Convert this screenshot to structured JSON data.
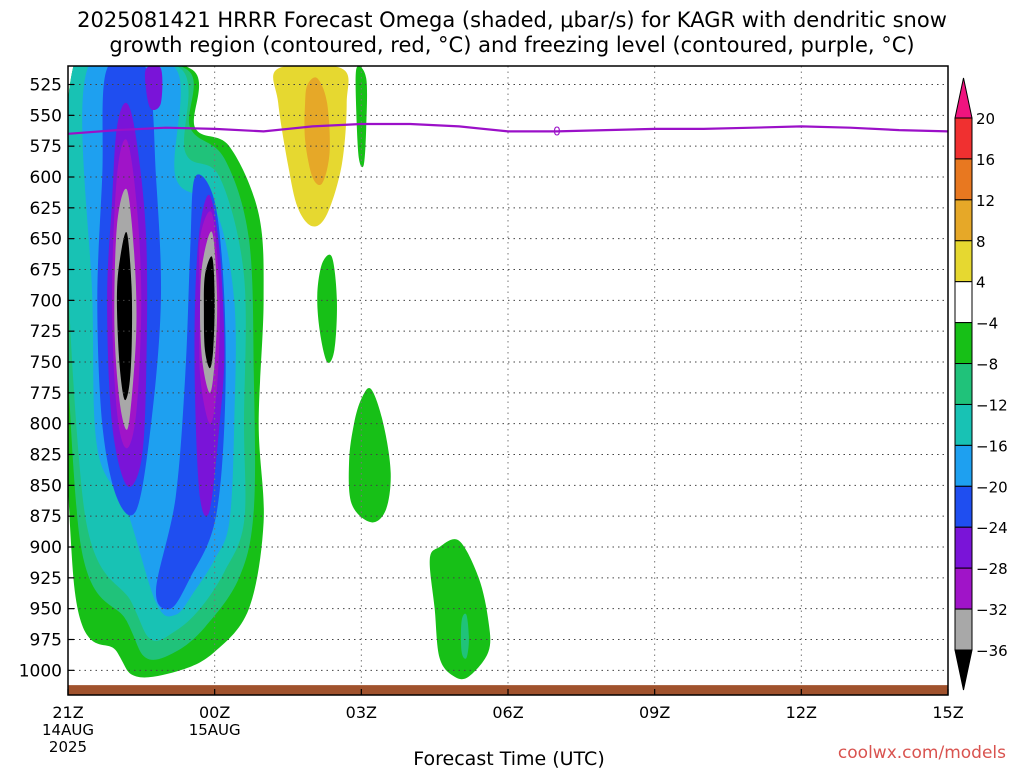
{
  "title_line1": "2025081421 HRRR Forecast Omega (shaded, μbar/s) for KAGR with dendritic snow",
  "title_line2": "growth region (contoured, red, °C) and freezing level (contoured, purple, °C)",
  "credit": "coolwx.com/models",
  "chart_data": {
    "type": "heatmap",
    "xlabel": "Forecast Time (UTC)",
    "ylabel": "",
    "x_ticks": [
      {
        "hour": 0,
        "label": "21Z",
        "sub1": "14AUG",
        "sub2": "2025"
      },
      {
        "hour": 3,
        "label": "00Z",
        "sub1": "15AUG",
        "sub2": ""
      },
      {
        "hour": 6,
        "label": "03Z",
        "sub1": "",
        "sub2": ""
      },
      {
        "hour": 9,
        "label": "06Z",
        "sub1": "",
        "sub2": ""
      },
      {
        "hour": 12,
        "label": "09Z",
        "sub1": "",
        "sub2": ""
      },
      {
        "hour": 15,
        "label": "12Z",
        "sub1": "",
        "sub2": ""
      },
      {
        "hour": 18,
        "label": "15Z",
        "sub1": "",
        "sub2": ""
      }
    ],
    "xlim_hours": [
      0,
      18
    ],
    "y_ticks": [
      525,
      550,
      575,
      600,
      625,
      650,
      675,
      700,
      725,
      750,
      775,
      800,
      825,
      850,
      875,
      900,
      925,
      950,
      975,
      1000
    ],
    "ylim_hpa": [
      510,
      1020
    ],
    "grid": true,
    "colorbar": {
      "position": "right",
      "labels": [
        "20",
        "16",
        "12",
        "8",
        "4",
        "−4",
        "−8",
        "−12",
        "−16",
        "−20",
        "−24",
        "−28",
        "−32",
        "−36"
      ],
      "colors": [
        "#f0147f",
        "#f03030",
        "#e87820",
        "#e6a828",
        "#e6d830",
        "#ffffff",
        "#17c017",
        "#20c27a",
        "#18c2b4",
        "#1ea0f0",
        "#1f4ef0",
        "#7a14d8",
        "#a014c8",
        "#a8a8a8",
        "#000000"
      ]
    },
    "freezing_level_hpa": [
      {
        "hour": 0.0,
        "p": 565
      },
      {
        "hour": 1.0,
        "p": 562
      },
      {
        "hour": 2.0,
        "p": 560
      },
      {
        "hour": 3.0,
        "p": 561
      },
      {
        "hour": 4.0,
        "p": 563
      },
      {
        "hour": 5.0,
        "p": 559
      },
      {
        "hour": 6.0,
        "p": 557
      },
      {
        "hour": 7.0,
        "p": 557
      },
      {
        "hour": 8.0,
        "p": 559
      },
      {
        "hour": 9.0,
        "p": 563
      },
      {
        "hour": 10.0,
        "p": 563
      },
      {
        "hour": 11.0,
        "p": 562
      },
      {
        "hour": 12.0,
        "p": 561
      },
      {
        "hour": 13.0,
        "p": 561
      },
      {
        "hour": 14.0,
        "p": 560
      },
      {
        "hour": 15.0,
        "p": 559
      },
      {
        "hour": 16.0,
        "p": 560
      },
      {
        "hour": 17.0,
        "p": 562
      },
      {
        "hour": 18.0,
        "p": 563
      }
    ],
    "freezing_level_label": "0",
    "freezing_level_label_hour": 10.0,
    "surface_hpa": 1012,
    "omega_cells": [
      {
        "id": "west-green",
        "value": -6,
        "color": "#17c017",
        "pts": [
          [
            0.1,
            512
          ],
          [
            2.5,
            512
          ],
          [
            2.6,
            560
          ],
          [
            3.3,
            575
          ],
          [
            3.9,
            630
          ],
          [
            4.0,
            700
          ],
          [
            3.9,
            800
          ],
          [
            4.0,
            880
          ],
          [
            3.7,
            950
          ],
          [
            3.0,
            985
          ],
          [
            2.3,
            1000
          ],
          [
            1.4,
            1005
          ],
          [
            1.0,
            985
          ],
          [
            0.1,
            920
          ]
        ]
      },
      {
        "id": "west-teal",
        "value": -10,
        "color": "#20c27a",
        "pts": [
          [
            0.1,
            512
          ],
          [
            2.4,
            512
          ],
          [
            2.5,
            560
          ],
          [
            3.2,
            585
          ],
          [
            3.7,
            650
          ],
          [
            3.8,
            760
          ],
          [
            3.8,
            870
          ],
          [
            3.5,
            925
          ],
          [
            2.8,
            965
          ],
          [
            2.2,
            985
          ],
          [
            1.6,
            990
          ],
          [
            1.2,
            960
          ],
          [
            0.2,
            880
          ]
        ]
      },
      {
        "id": "west-cyan",
        "value": -14,
        "color": "#18c2b4",
        "pts": [
          [
            0.1,
            512
          ],
          [
            2.3,
            512
          ],
          [
            2.4,
            580
          ],
          [
            3.1,
            600
          ],
          [
            3.6,
            680
          ],
          [
            3.6,
            800
          ],
          [
            3.6,
            880
          ],
          [
            3.2,
            920
          ],
          [
            2.7,
            950
          ],
          [
            2.2,
            968
          ],
          [
            1.7,
            975
          ],
          [
            1.3,
            945
          ],
          [
            0.3,
            860
          ]
        ]
      },
      {
        "id": "west-lightblue",
        "value": -18,
        "color": "#1ea0f0",
        "pts": [
          [
            0.4,
            512
          ],
          [
            2.2,
            512
          ],
          [
            2.2,
            600
          ],
          [
            3.0,
            625
          ],
          [
            3.4,
            700
          ],
          [
            3.4,
            800
          ],
          [
            3.3,
            880
          ],
          [
            3.0,
            910
          ],
          [
            2.6,
            935
          ],
          [
            2.2,
            955
          ],
          [
            1.8,
            945
          ],
          [
            1.2,
            870
          ],
          [
            0.6,
            820
          ],
          [
            0.5,
            700
          ]
        ]
      },
      {
        "id": "west-blue-left",
        "value": -22,
        "color": "#1f4ef0",
        "pts": [
          [
            0.8,
            512
          ],
          [
            1.6,
            512
          ],
          [
            1.8,
            600
          ],
          [
            1.9,
            700
          ],
          [
            1.7,
            800
          ],
          [
            1.4,
            870
          ],
          [
            1.0,
            860
          ],
          [
            0.7,
            800
          ],
          [
            0.6,
            700
          ],
          [
            0.7,
            600
          ]
        ]
      },
      {
        "id": "west-blue-right",
        "value": -22,
        "color": "#1f4ef0",
        "pts": [
          [
            2.6,
            600
          ],
          [
            3.0,
            620
          ],
          [
            3.2,
            700
          ],
          [
            3.2,
            800
          ],
          [
            3.0,
            880
          ],
          [
            2.5,
            925
          ],
          [
            2.1,
            950
          ],
          [
            1.8,
            935
          ],
          [
            2.2,
            860
          ],
          [
            2.4,
            760
          ],
          [
            2.5,
            660
          ]
        ]
      },
      {
        "id": "west-purple-left",
        "value": -26,
        "color": "#7a14d8",
        "pts": [
          [
            1.0,
            560
          ],
          [
            1.2,
            540
          ],
          [
            1.4,
            570
          ],
          [
            1.6,
            650
          ],
          [
            1.6,
            760
          ],
          [
            1.5,
            830
          ],
          [
            1.2,
            850
          ],
          [
            0.9,
            800
          ],
          [
            0.8,
            700
          ],
          [
            0.9,
            620
          ]
        ]
      },
      {
        "id": "west-purple-right",
        "value": -26,
        "color": "#7a14d8",
        "pts": [
          [
            2.7,
            640
          ],
          [
            2.9,
            615
          ],
          [
            3.1,
            660
          ],
          [
            3.2,
            740
          ],
          [
            3.1,
            800
          ],
          [
            2.9,
            870
          ],
          [
            2.7,
            860
          ],
          [
            2.6,
            780
          ],
          [
            2.6,
            700
          ]
        ]
      },
      {
        "id": "west-purple-top",
        "value": -26,
        "color": "#7a14d8",
        "pts": [
          [
            1.6,
            512
          ],
          [
            1.9,
            512
          ],
          [
            1.9,
            540
          ],
          [
            1.7,
            545
          ],
          [
            1.6,
            530
          ]
        ]
      },
      {
        "id": "west-magenta-left",
        "value": -30,
        "color": "#a014c8",
        "pts": [
          [
            1.0,
            600
          ],
          [
            1.2,
            570
          ],
          [
            1.4,
            620
          ],
          [
            1.5,
            700
          ],
          [
            1.4,
            790
          ],
          [
            1.2,
            820
          ],
          [
            1.0,
            790
          ],
          [
            0.9,
            700
          ]
        ]
      },
      {
        "id": "west-magenta-right",
        "value": -30,
        "color": "#a014c8",
        "pts": [
          [
            2.7,
            650
          ],
          [
            2.95,
            630
          ],
          [
            3.1,
            700
          ],
          [
            3.05,
            770
          ],
          [
            2.9,
            800
          ],
          [
            2.7,
            760
          ],
          [
            2.7,
            700
          ]
        ]
      },
      {
        "id": "west-gray-left",
        "value": -34,
        "color": "#a8a8a8",
        "pts": [
          [
            1.0,
            640
          ],
          [
            1.2,
            610
          ],
          [
            1.35,
            660
          ],
          [
            1.4,
            720
          ],
          [
            1.3,
            780
          ],
          [
            1.2,
            805
          ],
          [
            1.05,
            780
          ],
          [
            0.95,
            720
          ]
        ]
      },
      {
        "id": "west-gray-right",
        "value": -34,
        "color": "#a8a8a8",
        "pts": [
          [
            2.75,
            670
          ],
          [
            2.95,
            645
          ],
          [
            3.05,
            700
          ],
          [
            3.0,
            750
          ],
          [
            2.9,
            775
          ],
          [
            2.75,
            750
          ],
          [
            2.7,
            710
          ]
        ]
      },
      {
        "id": "west-black-left",
        "value": -38,
        "color": "#000000",
        "pts": [
          [
            1.05,
            670
          ],
          [
            1.2,
            645
          ],
          [
            1.3,
            690
          ],
          [
            1.3,
            740
          ],
          [
            1.25,
            770
          ],
          [
            1.15,
            780
          ],
          [
            1.05,
            750
          ],
          [
            1.0,
            700
          ]
        ]
      },
      {
        "id": "west-black-right",
        "value": -38,
        "color": "#000000",
        "pts": [
          [
            2.8,
            680
          ],
          [
            2.95,
            665
          ],
          [
            3.0,
            700
          ],
          [
            2.97,
            740
          ],
          [
            2.9,
            755
          ],
          [
            2.8,
            740
          ],
          [
            2.78,
            710
          ]
        ]
      },
      {
        "id": "yellow-upper",
        "value": 6,
        "color": "#e6d830",
        "pts": [
          [
            4.3,
            512
          ],
          [
            5.6,
            512
          ],
          [
            5.7,
            540
          ],
          [
            5.6,
            590
          ],
          [
            5.3,
            630
          ],
          [
            5.0,
            640
          ],
          [
            4.7,
            625
          ],
          [
            4.5,
            590
          ],
          [
            4.3,
            540
          ]
        ]
      },
      {
        "id": "orange-upper",
        "value": 10,
        "color": "#e6a828",
        "pts": [
          [
            4.9,
            525
          ],
          [
            5.1,
            520
          ],
          [
            5.3,
            540
          ],
          [
            5.35,
            580
          ],
          [
            5.2,
            605
          ],
          [
            5.0,
            600
          ],
          [
            4.85,
            570
          ],
          [
            4.85,
            540
          ]
        ]
      },
      {
        "id": "green-03z-top",
        "value": -6,
        "color": "#17c017",
        "pts": [
          [
            5.9,
            512
          ],
          [
            6.1,
            520
          ],
          [
            6.1,
            560
          ],
          [
            6.05,
            590
          ],
          [
            5.95,
            585
          ],
          [
            5.9,
            550
          ]
        ]
      },
      {
        "id": "green-mid-small",
        "value": -6,
        "color": "#17c017",
        "pts": [
          [
            5.2,
            670
          ],
          [
            5.4,
            665
          ],
          [
            5.5,
            700
          ],
          [
            5.45,
            740
          ],
          [
            5.3,
            750
          ],
          [
            5.15,
            725
          ],
          [
            5.1,
            695
          ]
        ]
      },
      {
        "id": "green-03z-mid",
        "value": -6,
        "color": "#17c017",
        "pts": [
          [
            6.0,
            780
          ],
          [
            6.2,
            772
          ],
          [
            6.45,
            800
          ],
          [
            6.6,
            840
          ],
          [
            6.5,
            870
          ],
          [
            6.2,
            880
          ],
          [
            5.8,
            865
          ],
          [
            5.75,
            830
          ],
          [
            5.85,
            800
          ]
        ]
      },
      {
        "id": "green-low-east",
        "value": -6,
        "color": "#17c017",
        "pts": [
          [
            7.6,
            900
          ],
          [
            8.0,
            895
          ],
          [
            8.4,
            925
          ],
          [
            8.6,
            960
          ],
          [
            8.6,
            985
          ],
          [
            8.2,
            1005
          ],
          [
            7.9,
            1005
          ],
          [
            7.6,
            990
          ],
          [
            7.5,
            950
          ],
          [
            7.4,
            910
          ]
        ]
      },
      {
        "id": "teal-low-east",
        "value": -10,
        "color": "#20c27a",
        "pts": [
          [
            8.05,
            960
          ],
          [
            8.15,
            955
          ],
          [
            8.2,
            975
          ],
          [
            8.15,
            990
          ],
          [
            8.05,
            985
          ]
        ]
      }
    ]
  }
}
